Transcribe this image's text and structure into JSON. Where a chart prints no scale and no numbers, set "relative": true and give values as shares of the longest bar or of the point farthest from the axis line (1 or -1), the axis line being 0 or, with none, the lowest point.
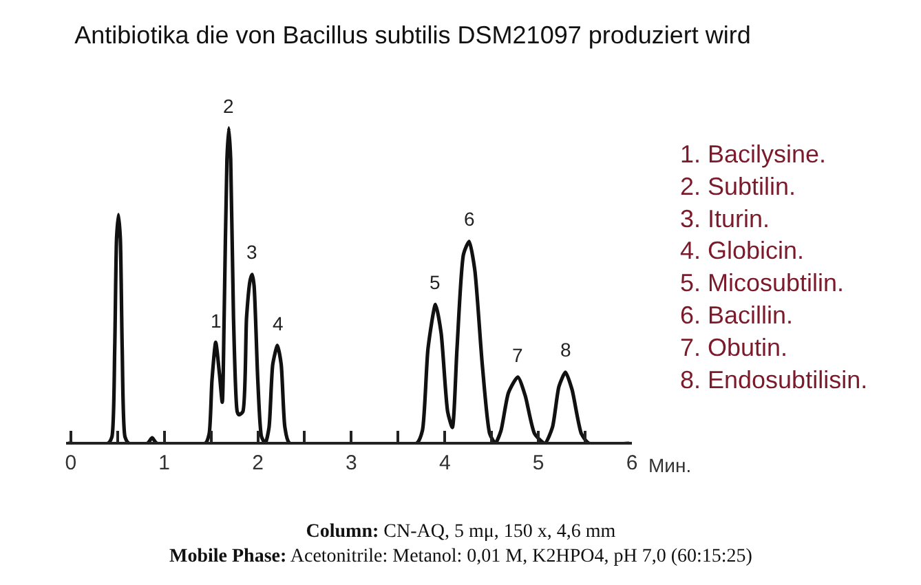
{
  "chart_data": {
    "type": "line",
    "relative": true,
    "title": "Antibiotika die von Bacillus subtilis DSM21097 produziert wird",
    "xlabel": "Мин.",
    "x": [
      -0.03,
      0.4,
      0.44,
      0.47,
      0.49,
      0.51,
      0.53,
      0.55,
      0.58,
      0.62,
      0.82,
      0.87,
      0.92,
      1.44,
      1.48,
      1.51,
      1.55,
      1.59,
      1.62,
      1.64,
      1.67,
      1.69,
      1.71,
      1.74,
      1.78,
      1.8,
      1.84,
      1.88,
      1.92,
      1.94,
      1.96,
      2.0,
      2.04,
      2.08,
      2.12,
      2.16,
      2.21,
      2.25,
      2.29,
      2.34,
      3.7,
      3.76,
      3.82,
      3.9,
      3.96,
      4.03,
      4.08,
      4.13,
      4.2,
      4.26,
      4.32,
      4.4,
      4.48,
      4.54,
      4.6,
      4.68,
      4.78,
      4.86,
      4.96,
      5.07,
      5.15,
      5.22,
      5.29,
      5.36,
      5.46,
      5.54,
      5.97
    ],
    "series": [
      {
        "color": "#111111",
        "values": [
          0,
          0,
          0.02,
          0.3,
          0.65,
          0.725,
          0.65,
          0.3,
          0.02,
          0,
          0,
          0.017,
          0,
          0,
          0.03,
          0.2,
          0.32,
          0.22,
          0.13,
          0.4,
          0.9,
          1,
          0.9,
          0.4,
          0.1,
          0.09,
          0.1,
          0.4,
          0.52,
          0.535,
          0.5,
          0.2,
          0.02,
          0,
          0.05,
          0.25,
          0.31,
          0.25,
          0.05,
          0,
          0,
          0.04,
          0.3,
          0.44,
          0.35,
          0.1,
          0.05,
          0.3,
          0.6,
          0.64,
          0.55,
          0.25,
          0.03,
          0,
          0.04,
          0.16,
          0.21,
          0.15,
          0.03,
          0,
          0.05,
          0.18,
          0.225,
          0.17,
          0.03,
          0,
          0
        ]
      }
    ],
    "xlim": [
      -0.05,
      6
    ],
    "xticks": [
      0,
      {
        "value": 0.5,
        "label": null
      },
      1,
      {
        "value": 1.5,
        "label": null
      },
      2,
      {
        "value": 2.5,
        "label": null
      },
      3,
      {
        "value": 3.5,
        "label": null
      },
      4,
      {
        "value": 4.5,
        "label": null
      },
      5,
      {
        "value": 5.5,
        "label": null
      },
      6
    ],
    "marker": "none",
    "line_style": "solid",
    "annotations": [
      {
        "text": "1",
        "x": 1.55,
        "y": 0.32
      },
      {
        "text": "2",
        "x": 1.69,
        "y": 1
      },
      {
        "text": "3",
        "x": 1.94,
        "y": 0.535
      },
      {
        "text": "4",
        "x": 2.21,
        "y": 0.31
      },
      {
        "text": "5",
        "x": 3.9,
        "y": 0.44
      },
      {
        "text": "6",
        "x": 4.26,
        "y": 0.64
      },
      {
        "text": "7",
        "x": 4.78,
        "y": 0.21
      },
      {
        "text": "8",
        "x": 5.29,
        "y": 0.225
      },
      "1. Bacilysine.\n2. Subtilin.\n3. Iturin.\n4. Globicin.\n5. Micosubtilin.\n6. Bacillin.\n7. Obutin.\n8. Endosubtilisin.",
      "Column: CN-AQ, 5 mμ, 150 x, 4,6 mm\nMobile Phase: Acetonitrile: Metanol: 0,01 M, K2HPO4, pH 7,0 (60:15:25)"
    ]
  }
}
